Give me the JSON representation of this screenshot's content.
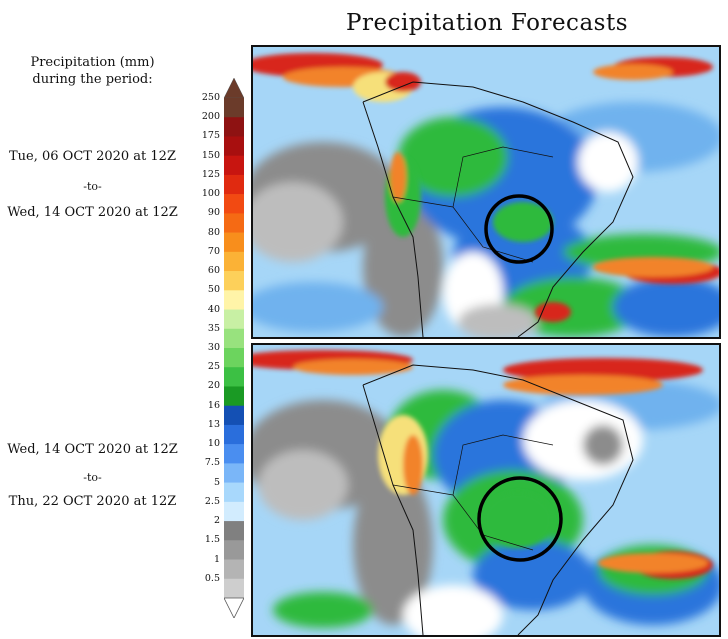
{
  "title": "Precipitation Forecasts",
  "sidebar": {
    "heading_line1": "Precipitation (mm)",
    "heading_line2": "during the period:",
    "period1": {
      "start": "Tue, 06 OCT 2020 at 12Z",
      "to": "-to-",
      "end": "Wed, 14 OCT 2020 at 12Z"
    },
    "period2": {
      "start": "Wed, 14 OCT 2020 at 12Z",
      "to": "-to-",
      "end": "Thu, 22 OCT 2020 at 12Z"
    }
  },
  "colorbar": {
    "labels": [
      "250",
      "200",
      "175",
      "150",
      "125",
      "100",
      "90",
      "80",
      "70",
      "60",
      "50",
      "40",
      "35",
      "30",
      "25",
      "20",
      "16",
      "13",
      "10",
      "7.5",
      "5",
      "2.5",
      "2",
      "1.5",
      "1",
      "0.5"
    ],
    "colors": [
      "#6b3b2a",
      "#8e1212",
      "#a80f0f",
      "#c81510",
      "#e02a10",
      "#f24a12",
      "#f56a14",
      "#f88e1c",
      "#fbb236",
      "#fdd05a",
      "#fff4a8",
      "#c8f0a4",
      "#98e27e",
      "#6cd45e",
      "#3cc044",
      "#1a9a24",
      "#1450b4",
      "#2a6edc",
      "#4a8ef0",
      "#7ab6f8",
      "#a8d8fc",
      "#d2ecfe",
      "#808080",
      "#999999",
      "#b4b4b4",
      "#cecece"
    ],
    "top_color": "#6b3b2a",
    "bottom_color": "#ffffff"
  },
  "maps": {
    "palette": {
      "ocean_light": "#a6d6f7",
      "ocean_mid": "#6fb2ee",
      "blue": "#2c74dc",
      "green": "#2fba3e",
      "yellow": "#f6e07a",
      "orange": "#f2832a",
      "red": "#d8281c",
      "gray": "#8c8c8c",
      "gray_light": "#bdbdbd",
      "dry": "#ffffff"
    },
    "circle_color": "#000000"
  }
}
